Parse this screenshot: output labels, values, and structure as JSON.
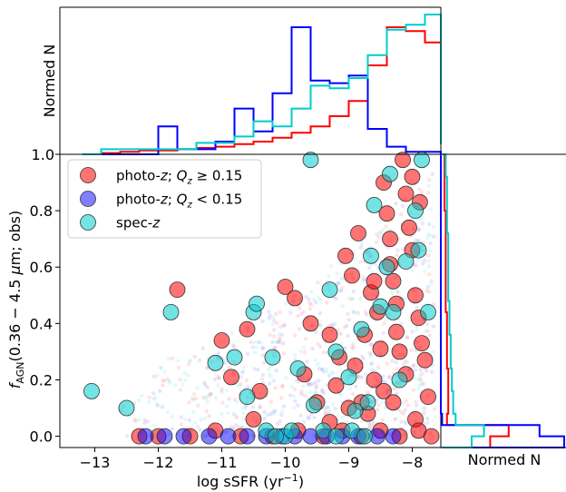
{
  "chart_data": {
    "type": "scatter",
    "xlabel": "log sSFR (yr$^{-1}$)",
    "ylabel": "f_AGN(0.36−4.5 μm; obs)",
    "top_ylabel": "Normed N",
    "right_xlabel": "Normed N",
    "xlim": [
      -13.55,
      -7.55
    ],
    "ylim": [
      -0.04,
      1.0
    ],
    "x_ticks": [
      -13,
      -12,
      -11,
      -10,
      -9,
      -8
    ],
    "x_tick_labels": [
      "−13",
      "−12",
      "−11",
      "−10",
      "−9",
      "−8"
    ],
    "y_ticks": [
      0.0,
      0.2,
      0.4,
      0.6,
      0.8,
      1.0
    ],
    "y_tick_labels": [
      "0.0",
      "0.2",
      "0.4",
      "0.6",
      "0.8",
      "1.0"
    ],
    "top_tick_label": "1.0",
    "legend_placement": "upper-left",
    "series": [
      {
        "name": "photo-z; Qz ≥ 0.15",
        "color": "#ff0000",
        "points": [
          [
            -11.7,
            0.52
          ],
          [
            -11.0,
            0.34
          ],
          [
            -10.85,
            0.21
          ],
          [
            -10.6,
            0.38
          ],
          [
            -10.4,
            0.16
          ],
          [
            -10.0,
            0.53
          ],
          [
            -9.85,
            0.49
          ],
          [
            -9.6,
            0.4
          ],
          [
            -9.7,
            0.22
          ],
          [
            -9.5,
            0.12
          ],
          [
            -9.3,
            0.36
          ],
          [
            -9.15,
            0.28
          ],
          [
            -9.05,
            0.64
          ],
          [
            -8.95,
            0.57
          ],
          [
            -8.85,
            0.72
          ],
          [
            -8.75,
            0.36
          ],
          [
            -8.65,
            0.51
          ],
          [
            -8.55,
            0.44
          ],
          [
            -8.45,
            0.9
          ],
          [
            -8.4,
            0.79
          ],
          [
            -8.35,
            0.61
          ],
          [
            -8.3,
            0.55
          ],
          [
            -8.25,
            0.37
          ],
          [
            -8.2,
            0.3
          ],
          [
            -8.15,
            0.98
          ],
          [
            -8.1,
            0.86
          ],
          [
            -8.05,
            0.74
          ],
          [
            -8.0,
            0.66
          ],
          [
            -7.95,
            0.5
          ],
          [
            -7.9,
            0.42
          ],
          [
            -7.85,
            0.33
          ],
          [
            -7.8,
            0.27
          ],
          [
            -7.88,
            0.83
          ],
          [
            -7.75,
            0.14
          ],
          [
            -8.6,
            0.2
          ],
          [
            -8.7,
            0.08
          ],
          [
            -9.2,
            0.18
          ],
          [
            -8.9,
            0.25
          ],
          [
            -8.5,
            0.31
          ],
          [
            -8.3,
            0.12
          ],
          [
            -8.1,
            0.22
          ],
          [
            -7.95,
            0.06
          ],
          [
            -8.45,
            0.16
          ],
          [
            -8.8,
            0.12
          ],
          [
            -9.0,
            0.1
          ],
          [
            -12.3,
            0.0
          ],
          [
            -12.0,
            0.0
          ],
          [
            -11.5,
            0.0
          ],
          [
            -11.1,
            0.02
          ],
          [
            -10.7,
            0.0
          ],
          [
            -10.2,
            0.0
          ],
          [
            -9.8,
            0.02
          ],
          [
            -9.4,
            0.0
          ],
          [
            -9.1,
            0.02
          ],
          [
            -8.8,
            0.0
          ],
          [
            -8.5,
            0.02
          ],
          [
            -8.2,
            0.0
          ],
          [
            -7.9,
            0.02
          ],
          [
            -7.7,
            0.0
          ],
          [
            -8.6,
            0.55
          ],
          [
            -8.25,
            0.47
          ],
          [
            -8.0,
            0.92
          ],
          [
            -8.35,
            0.7
          ],
          [
            -9.3,
            0.05
          ],
          [
            -10.5,
            0.06
          ]
        ]
      },
      {
        "name": "photo-z; Qz < 0.15",
        "color": "#0000ff",
        "points": [
          [
            -12.2,
            0.0
          ],
          [
            -11.9,
            0.0
          ],
          [
            -11.6,
            0.0
          ],
          [
            -11.2,
            0.0
          ],
          [
            -10.9,
            0.0
          ],
          [
            -10.6,
            0.0
          ],
          [
            -10.3,
            0.0
          ],
          [
            -10.05,
            0.0
          ],
          [
            -9.85,
            0.0
          ],
          [
            -9.6,
            0.0
          ],
          [
            -9.35,
            0.0
          ],
          [
            -9.1,
            0.0
          ],
          [
            -8.85,
            0.0
          ],
          [
            -8.55,
            0.0
          ],
          [
            -8.3,
            0.0
          ]
        ]
      },
      {
        "name": "spec-z",
        "color": "#00cccc",
        "points": [
          [
            -13.05,
            0.16
          ],
          [
            -12.5,
            0.1
          ],
          [
            -11.8,
            0.44
          ],
          [
            -11.1,
            0.26
          ],
          [
            -10.8,
            0.28
          ],
          [
            -10.6,
            0.14
          ],
          [
            -10.5,
            0.44
          ],
          [
            -10.45,
            0.47
          ],
          [
            -10.2,
            0.28
          ],
          [
            -10.0,
            0.0
          ],
          [
            -9.8,
            0.24
          ],
          [
            -9.55,
            0.11
          ],
          [
            -9.3,
            0.52
          ],
          [
            -9.2,
            0.3
          ],
          [
            -9.0,
            0.21
          ],
          [
            -8.9,
            0.09
          ],
          [
            -8.8,
            0.38
          ],
          [
            -8.7,
            0.12
          ],
          [
            -8.65,
            0.64
          ],
          [
            -8.6,
            0.82
          ],
          [
            -8.5,
            0.46
          ],
          [
            -8.4,
            0.6
          ],
          [
            -8.35,
            0.93
          ],
          [
            -8.3,
            0.44
          ],
          [
            -8.2,
            0.2
          ],
          [
            -8.1,
            0.62
          ],
          [
            -7.95,
            0.8
          ],
          [
            -7.9,
            0.66
          ],
          [
            -7.85,
            0.98
          ],
          [
            -7.75,
            0.44
          ],
          [
            -9.6,
            0.98
          ],
          [
            -10.3,
            0.02
          ],
          [
            -9.4,
            0.02
          ],
          [
            -8.95,
            0.02
          ],
          [
            -8.75,
            0.0
          ],
          [
            -9.9,
            0.02
          ],
          [
            -10.15,
            0.0
          ],
          [
            -9.2,
            0.0
          ]
        ]
      }
    ],
    "top_histograms": {
      "bin_edges": [
        -13.2,
        -12.9,
        -12.6,
        -12.3,
        -12.0,
        -11.7,
        -11.4,
        -11.1,
        -10.8,
        -10.5,
        -10.2,
        -9.9,
        -9.6,
        -9.3,
        -9.0,
        -8.7,
        -8.4,
        -8.1,
        -7.8,
        -7.55
      ],
      "series": [
        {
          "color": "#ff0000",
          "values": [
            0.0,
            0.01,
            0.02,
            0.03,
            0.03,
            0.04,
            0.05,
            0.06,
            0.08,
            0.1,
            0.13,
            0.17,
            0.22,
            0.3,
            0.42,
            0.7,
            1.0,
            0.97,
            0.88,
            0.1
          ]
        },
        {
          "color": "#0000ff",
          "values": [
            0.0,
            0.0,
            0.0,
            0.0,
            0.22,
            0.04,
            0.04,
            0.1,
            0.36,
            0.18,
            0.48,
            1.0,
            0.58,
            0.56,
            0.62,
            0.2,
            0.06,
            0.02,
            0.02,
            0.0
          ]
        },
        {
          "color": "#00cccc",
          "values": [
            0.0,
            0.04,
            0.04,
            0.04,
            0.04,
            0.04,
            0.09,
            0.09,
            0.14,
            0.26,
            0.22,
            0.36,
            0.54,
            0.52,
            0.6,
            0.78,
            0.98,
            1.02,
            1.1,
            0.08
          ]
        }
      ]
    },
    "right_histograms": {
      "bin_edges": [
        -0.04,
        0.0,
        0.04,
        0.08,
        0.12,
        0.16,
        0.2,
        0.24,
        0.28,
        0.32,
        0.36,
        0.4,
        0.44,
        0.48,
        0.52,
        0.56,
        0.6,
        0.64,
        0.68,
        0.72,
        0.76,
        0.8,
        0.84,
        0.88,
        0.92,
        0.96,
        1.0
      ],
      "series": [
        {
          "color": "#ff0000",
          "values": [
            0.4,
            0.55,
            0.05,
            0.06,
            0.06,
            0.06,
            0.06,
            0.05,
            0.05,
            0.05,
            0.05,
            0.05,
            0.04,
            0.04,
            0.04,
            0.04,
            0.04,
            0.04,
            0.04,
            0.04,
            0.04,
            0.03,
            0.03,
            0.03,
            0.03,
            0.03
          ]
        },
        {
          "color": "#0000ff",
          "values": [
            1.0,
            0.8,
            0.01,
            0.0,
            0.0,
            0.0,
            0.0,
            0.0,
            0.0,
            0.0,
            0.0,
            0.0,
            0.0,
            0.0,
            0.0,
            0.0,
            0.0,
            0.0,
            0.0,
            0.0,
            0.0,
            0.0,
            0.0,
            0.0,
            0.0,
            0.0
          ]
        },
        {
          "color": "#00cccc",
          "values": [
            0.25,
            0.35,
            0.12,
            0.1,
            0.1,
            0.09,
            0.09,
            0.08,
            0.08,
            0.08,
            0.07,
            0.07,
            0.07,
            0.06,
            0.06,
            0.06,
            0.06,
            0.06,
            0.06,
            0.05,
            0.05,
            0.05,
            0.05,
            0.05,
            0.04,
            0.04
          ]
        }
      ]
    }
  }
}
